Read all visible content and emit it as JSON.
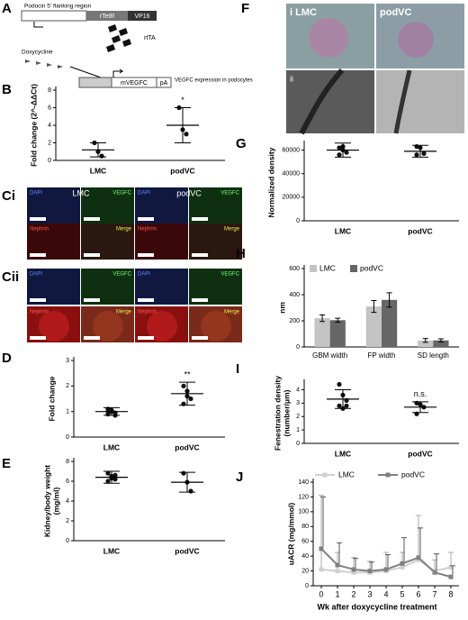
{
  "diagram_a": {
    "panel": "A",
    "promoter": "Podocin 5' flanking region",
    "rtetr": "rTetR",
    "vp16": "VP16",
    "rtta": "rtTA",
    "dox": "Doxycycline",
    "gene": "mVEGFC",
    "pa": "pA",
    "expression": "VEGFC expression in podocytes"
  },
  "images_c": {
    "panels": [
      "Ci",
      "Cii"
    ],
    "headers": [
      "LMC",
      "podVC"
    ],
    "tiles": [
      [
        "DAPI",
        "VEGFC",
        "DAPI",
        "VEGFC"
      ],
      [
        "Nephrin",
        "Merge",
        "Nephrin",
        "Merge"
      ]
    ]
  },
  "images_f": {
    "panel": "F",
    "labels": [
      "i LMC",
      "podVC",
      "ii"
    ]
  },
  "chart_data": [
    {
      "type": "dotplot",
      "panel": "B",
      "ylabel": [
        "Fold change (2^-ΔΔCt)"
      ],
      "categories": [
        "LMC",
        "podVC"
      ],
      "points": [
        [
          2,
          1,
          0.5
        ],
        [
          6,
          3.5,
          3
        ]
      ],
      "means": [
        1.2,
        4
      ],
      "sds": [
        0.8,
        2
      ],
      "annotations": [
        null,
        "*"
      ],
      "ylim": [
        0,
        8
      ],
      "yticks": [
        0,
        2,
        4,
        6,
        8
      ]
    },
    {
      "type": "dotplot",
      "panel": "D",
      "ylabel": [
        "Fold change"
      ],
      "categories": [
        "LMC",
        "podVC"
      ],
      "points": [
        [
          1.1,
          1.0,
          0.95,
          0.9,
          1.05,
          0.85,
          1.0
        ],
        [
          2.0,
          1.8,
          1.5,
          1.3,
          1.6
        ]
      ],
      "means": [
        1.0,
        1.7
      ],
      "sds": [
        0.15,
        0.45
      ],
      "annotations": [
        null,
        "**"
      ],
      "ylim": [
        0,
        3
      ],
      "yticks": [
        0,
        1,
        2,
        3
      ]
    },
    {
      "type": "dotplot",
      "panel": "E",
      "ylabel": [
        "Kidney/body weight",
        "(mg/ml)"
      ],
      "categories": [
        "LMC",
        "podVC"
      ],
      "points": [
        [
          6.8,
          6.5,
          6.2,
          6.0,
          6.3,
          6.6
        ],
        [
          6.8,
          5.9,
          5.0
        ]
      ],
      "means": [
        6.4,
        5.9
      ],
      "sds": [
        0.6,
        1.0
      ],
      "annotations": [
        null,
        null
      ],
      "ylim": [
        0,
        8
      ],
      "yticks": [
        0,
        2,
        4,
        6,
        8
      ]
    },
    {
      "type": "dotplot",
      "panel": "G",
      "ylabel": [
        "Normalized density"
      ],
      "categories": [
        "LMC",
        "podVC"
      ],
      "points": [
        [
          62000,
          60000,
          58000,
          56000,
          63000
        ],
        [
          63000,
          62000,
          57000,
          56000
        ]
      ],
      "means": [
        60000,
        59000
      ],
      "sds": [
        6000,
        5000
      ],
      "annotations": [
        null,
        null
      ],
      "ylim": [
        0,
        65000
      ],
      "yticks": [
        0,
        20000,
        40000,
        60000
      ]
    },
    {
      "type": "bar",
      "panel": "H",
      "ylabel": [
        "nm"
      ],
      "categories": [
        "GBM width",
        "FP width",
        "SD length"
      ],
      "series": [
        {
          "name": "LMC",
          "color": "#c4c4c4",
          "values": [
            220,
            310,
            50
          ],
          "errors": [
            25,
            45,
            15
          ]
        },
        {
          "name": "podVC",
          "color": "#666666",
          "values": [
            205,
            360,
            50
          ],
          "errors": [
            15,
            55,
            12
          ]
        }
      ],
      "ylim": [
        0,
        600
      ],
      "yticks": [
        0,
        200,
        400,
        600
      ]
    },
    {
      "type": "dotplot",
      "panel": "I",
      "ylabel": [
        "Fenestration density",
        "(number/μm)"
      ],
      "categories": [
        "LMC",
        "podVC"
      ],
      "points": [
        [
          4.4,
          3.6,
          3.2,
          2.8,
          2.6,
          2.8
        ],
        [
          3.0,
          2.9,
          2.7,
          2.2
        ]
      ],
      "means": [
        3.3,
        2.7
      ],
      "sds": [
        0.7,
        0.4
      ],
      "annotations": [
        null,
        "n.s."
      ],
      "ylim": [
        0,
        4.5
      ],
      "yticks": [
        0,
        1,
        2,
        3,
        4
      ]
    },
    {
      "type": "line",
      "panel": "J",
      "ylabel": [
        "uACR (mg/mmol)"
      ],
      "xlabel": "Wk after doxycycline treatment",
      "x": [
        0,
        1,
        2,
        3,
        4,
        5,
        6,
        7,
        8
      ],
      "series": [
        {
          "name": "LMC",
          "color": "#d0d0d0",
          "values": [
            22,
            20,
            18,
            18,
            20,
            25,
            35,
            20,
            25
          ],
          "errors": [
            100,
            25,
            20,
            15,
            25,
            20,
            60,
            15,
            20
          ]
        },
        {
          "name": "podVC",
          "color": "#808080",
          "values": [
            50,
            28,
            22,
            20,
            22,
            30,
            38,
            18,
            12
          ],
          "errors": [
            70,
            30,
            15,
            12,
            20,
            35,
            40,
            25,
            15
          ]
        }
      ],
      "xlim": [
        -0.5,
        8.5
      ],
      "xticks": [
        0,
        1,
        2,
        3,
        4,
        5,
        6,
        7,
        8
      ],
      "ylim": [
        0,
        140
      ],
      "yticks": [
        0,
        20,
        40,
        60,
        80,
        100,
        120,
        140
      ]
    }
  ]
}
